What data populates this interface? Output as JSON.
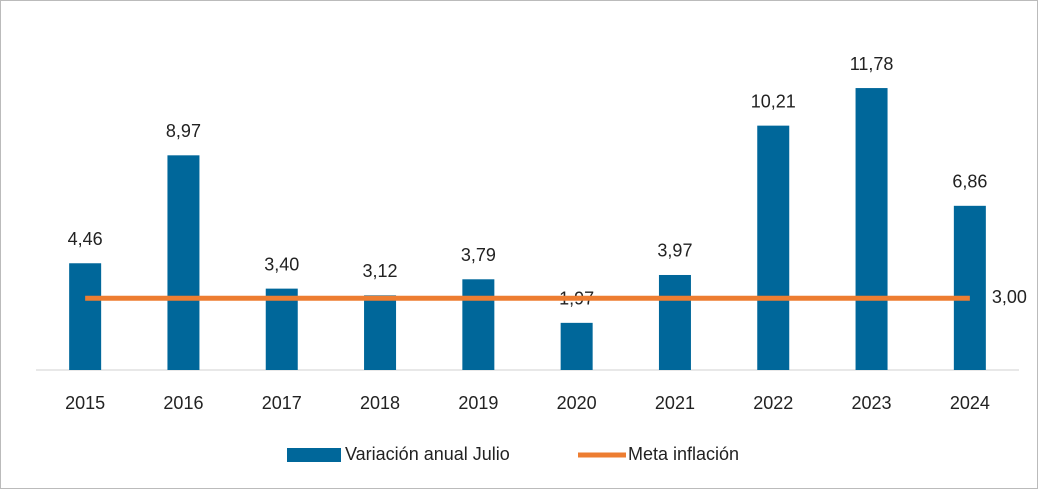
{
  "chart_data": {
    "type": "bar",
    "categories": [
      "2015",
      "2016",
      "2017",
      "2018",
      "2019",
      "2020",
      "2021",
      "2022",
      "2023",
      "2024"
    ],
    "series": [
      {
        "name": "Variación anual Julio",
        "type": "bar",
        "color": "#00679a",
        "values": [
          4.46,
          8.97,
          3.4,
          3.12,
          3.79,
          1.97,
          3.97,
          10.21,
          11.78,
          6.86
        ],
        "value_labels": [
          "4,46",
          "8,97",
          "3,40",
          "3,12",
          "3,79",
          "1,97",
          "3,97",
          "10,21",
          "11,78",
          "6,86"
        ]
      },
      {
        "name": "Meta inflación",
        "type": "line",
        "color": "#ed7d31",
        "values": [
          3,
          3,
          3,
          3,
          3,
          3,
          3,
          3,
          3,
          3
        ],
        "value_labels": [
          null,
          null,
          null,
          null,
          null,
          null,
          null,
          null,
          null,
          "3,00"
        ]
      }
    ],
    "ylim": [
      0,
      15
    ],
    "legend": "bottom"
  }
}
